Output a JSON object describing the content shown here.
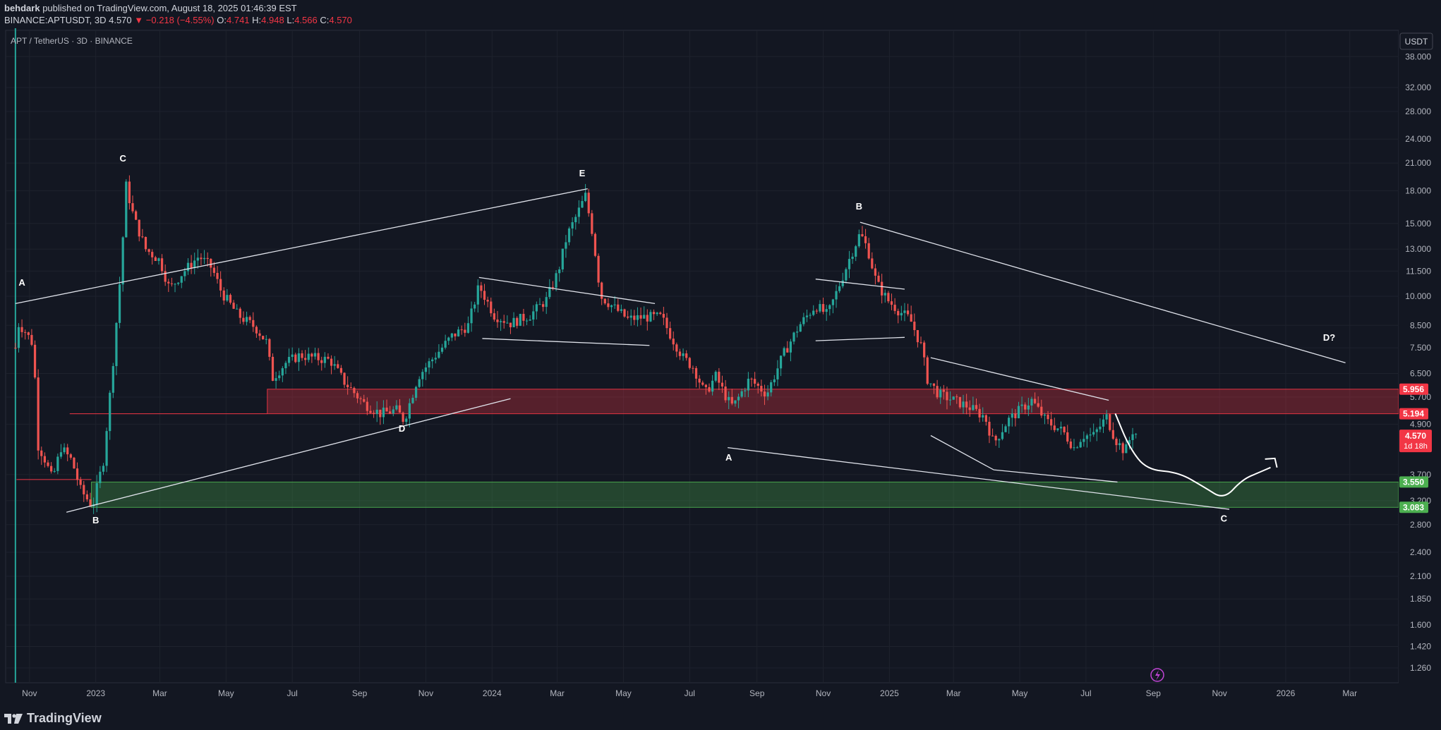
{
  "header": {
    "author": "behdark",
    "published_text": "published on TradingView.com, August 18, 2025 01:46:39 EST",
    "symbol": "BINANCE:APTUSDT, 3D",
    "last": "4.570",
    "change": "−0.218 (−4.55%)",
    "o_label": "O:",
    "o": "4.741",
    "h_label": "H:",
    "h": "4.948",
    "l_label": "L:",
    "l": "4.566",
    "c_label": "C:",
    "c": "4.570"
  },
  "pane": {
    "symbol_title": "APT / TetherUS · 3D · BINANCE",
    "currency_button": "USDT",
    "price_tag": "4.570",
    "countdown": "1d 18h"
  },
  "footer": {
    "brand": "TradingView"
  },
  "colors": {
    "background": "#131722",
    "up": "#26a69a",
    "down": "#ef5350",
    "resistance_zone": "#f23645",
    "support_zone": "#4caf50",
    "annotation": "#ffffff"
  },
  "chart_data": {
    "type": "candlestick",
    "symbol": "APT / TetherUS",
    "interval": "3D",
    "y_scale": "log",
    "y_ticks": [
      "38.000",
      "32.000",
      "28.000",
      "24.000",
      "21.000",
      "18.000",
      "15.000",
      "13.000",
      "11.500",
      "10.000",
      "8.500",
      "7.500",
      "6.500",
      "5.700",
      "4.900",
      "3.700",
      "3.200",
      "2.800",
      "2.400",
      "2.100",
      "1.850",
      "1.600",
      "1.420",
      "1.260"
    ],
    "y_tick_values": [
      38,
      32,
      28,
      24,
      21,
      18,
      15,
      13,
      11.5,
      10,
      8.5,
      7.5,
      6.5,
      5.7,
      4.9,
      3.7,
      3.2,
      2.8,
      2.4,
      2.1,
      1.85,
      1.6,
      1.42,
      1.26
    ],
    "x_ticks": [
      {
        "label": "Nov",
        "date": "2022-11-01"
      },
      {
        "label": "2023",
        "date": "2023-01-01"
      },
      {
        "label": "Mar",
        "date": "2023-03-01"
      },
      {
        "label": "May",
        "date": "2023-05-01"
      },
      {
        "label": "Jul",
        "date": "2023-07-01"
      },
      {
        "label": "Sep",
        "date": "2023-09-01"
      },
      {
        "label": "Nov",
        "date": "2023-11-01"
      },
      {
        "label": "2024",
        "date": "2024-01-01"
      },
      {
        "label": "Mar",
        "date": "2024-03-01"
      },
      {
        "label": "May",
        "date": "2024-05-01"
      },
      {
        "label": "Jul",
        "date": "2024-07-01"
      },
      {
        "label": "Sep",
        "date": "2024-09-01"
      },
      {
        "label": "Nov",
        "date": "2024-11-01"
      },
      {
        "label": "2025",
        "date": "2025-01-01"
      },
      {
        "label": "Mar",
        "date": "2025-03-01"
      },
      {
        "label": "May",
        "date": "2025-05-01"
      },
      {
        "label": "Jul",
        "date": "2025-07-01"
      },
      {
        "label": "Sep",
        "date": "2025-09-01"
      },
      {
        "label": "Nov",
        "date": "2025-11-01"
      },
      {
        "label": "2026",
        "date": "2026-01-01"
      },
      {
        "label": "Mar",
        "date": "2026-03-01"
      }
    ],
    "x_range": [
      "2022-10-10",
      "2026-04-15"
    ],
    "y_range": [
      1.16,
      44
    ],
    "close_path": [
      [
        "2022-10-19",
        7.5
      ],
      [
        "2022-10-21",
        8.6
      ],
      [
        "2022-10-27",
        8.3
      ],
      [
        "2022-11-05",
        7.6
      ],
      [
        "2022-11-08",
        4.4
      ],
      [
        "2022-11-14",
        4.1
      ],
      [
        "2022-11-22",
        3.6
      ],
      [
        "2022-11-30",
        4.3
      ],
      [
        "2022-12-10",
        4.0
      ],
      [
        "2022-12-18",
        3.4
      ],
      [
        "2022-12-29",
        3.1
      ],
      [
        "2023-01-08",
        4.0
      ],
      [
        "2023-01-16",
        6.5
      ],
      [
        "2023-01-24",
        11.5
      ],
      [
        "2023-01-29",
        18.5
      ],
      [
        "2023-02-05",
        15.5
      ],
      [
        "2023-02-16",
        13.0
      ],
      [
        "2023-03-01",
        12.2
      ],
      [
        "2023-03-10",
        10.4
      ],
      [
        "2023-03-22",
        11.4
      ],
      [
        "2023-04-06",
        12.5
      ],
      [
        "2023-04-18",
        11.7
      ],
      [
        "2023-04-27",
        10.2
      ],
      [
        "2023-05-12",
        9.0
      ],
      [
        "2023-05-28",
        8.4
      ],
      [
        "2023-06-08",
        7.7
      ],
      [
        "2023-06-12",
        6.3
      ],
      [
        "2023-06-25",
        6.9
      ],
      [
        "2023-07-08",
        7.2
      ],
      [
        "2023-07-20",
        7.1
      ],
      [
        "2023-08-05",
        7.0
      ],
      [
        "2023-08-18",
        6.2
      ],
      [
        "2023-09-05",
        5.5
      ],
      [
        "2023-09-20",
        5.2
      ],
      [
        "2023-10-05",
        5.3
      ],
      [
        "2023-10-12",
        5.0
      ],
      [
        "2023-10-25",
        6.4
      ],
      [
        "2023-11-10",
        7.2
      ],
      [
        "2023-11-25",
        8.0
      ],
      [
        "2023-12-10",
        8.5
      ],
      [
        "2023-12-20",
        10.6
      ],
      [
        "2024-01-03",
        9.0
      ],
      [
        "2024-01-18",
        8.6
      ],
      [
        "2024-02-05",
        9.0
      ],
      [
        "2024-02-20",
        9.8
      ],
      [
        "2024-03-02",
        11.5
      ],
      [
        "2024-03-10",
        14.0
      ],
      [
        "2024-03-18",
        15.5
      ],
      [
        "2024-03-27",
        17.5
      ],
      [
        "2024-04-03",
        14.0
      ],
      [
        "2024-04-10",
        10.0
      ],
      [
        "2024-04-20",
        9.5
      ],
      [
        "2024-05-05",
        8.8
      ],
      [
        "2024-05-20",
        8.9
      ],
      [
        "2024-06-05",
        8.9
      ],
      [
        "2024-06-15",
        7.9
      ],
      [
        "2024-06-25",
        7.1
      ],
      [
        "2024-07-05",
        6.7
      ],
      [
        "2024-07-15",
        5.8
      ],
      [
        "2024-07-25",
        6.4
      ],
      [
        "2024-08-05",
        5.6
      ],
      [
        "2024-08-10",
        5.4
      ],
      [
        "2024-08-25",
        6.3
      ],
      [
        "2024-09-10",
        5.8
      ],
      [
        "2024-09-25",
        7.2
      ],
      [
        "2024-10-10",
        8.5
      ],
      [
        "2024-10-25",
        9.5
      ],
      [
        "2024-11-05",
        9.0
      ],
      [
        "2024-11-15",
        10.5
      ],
      [
        "2024-11-25",
        12.3
      ],
      [
        "2024-12-05",
        14.2
      ],
      [
        "2024-12-12",
        13.0
      ],
      [
        "2024-12-20",
        10.8
      ],
      [
        "2024-12-30",
        9.8
      ],
      [
        "2025-01-10",
        9.2
      ],
      [
        "2025-01-20",
        8.8
      ],
      [
        "2025-01-30",
        7.6
      ],
      [
        "2025-02-05",
        6.3
      ],
      [
        "2025-02-15",
        5.8
      ],
      [
        "2025-03-01",
        5.6
      ],
      [
        "2025-03-15",
        5.4
      ],
      [
        "2025-03-30",
        5.1
      ],
      [
        "2025-04-07",
        4.4
      ],
      [
        "2025-04-20",
        5.0
      ],
      [
        "2025-05-01",
        5.3
      ],
      [
        "2025-05-12",
        5.6
      ],
      [
        "2025-05-25",
        5.0
      ],
      [
        "2025-06-10",
        4.7
      ],
      [
        "2025-06-20",
        4.3
      ],
      [
        "2025-06-28",
        4.6
      ],
      [
        "2025-07-08",
        4.6
      ],
      [
        "2025-07-20",
        5.1
      ],
      [
        "2025-07-28",
        4.5
      ],
      [
        "2025-08-06",
        4.2
      ],
      [
        "2025-08-14",
        4.8
      ],
      [
        "2025-08-17",
        4.57
      ]
    ],
    "zones": [
      {
        "name": "resistance",
        "from": 5.194,
        "to": 5.956,
        "start": "2023-06-08",
        "end": "2026-04-15",
        "color": "#f23645"
      },
      {
        "name": "support",
        "from": 3.083,
        "to": 3.55,
        "start": "2022-12-28",
        "end": "2026-04-15",
        "color": "#4caf50"
      }
    ],
    "price_labels": [
      {
        "value": "5.956",
        "color": "#f23645"
      },
      {
        "value": "5.194",
        "color": "#f23645"
      },
      {
        "value": "3.550",
        "color": "#4caf50"
      },
      {
        "value": "3.083",
        "color": "#4caf50"
      }
    ],
    "h_lines": [
      {
        "start": "2022-10-20",
        "end": "2022-12-28",
        "value": 3.6
      },
      {
        "start": "2022-12-08",
        "end": "2023-06-08",
        "value": 5.194
      }
    ],
    "trendlines": [
      {
        "start": [
          "2022-10-19",
          9.6
        ],
        "end": [
          "2024-03-29",
          18.2
        ]
      },
      {
        "start": [
          "2022-12-05",
          3.0
        ],
        "end": [
          "2024-01-18",
          5.65
        ]
      },
      {
        "start": [
          "2023-12-20",
          11.1
        ],
        "end": [
          "2024-05-30",
          9.6
        ]
      },
      {
        "start": [
          "2023-12-23",
          7.9
        ],
        "end": [
          "2024-05-25",
          7.6
        ]
      },
      {
        "start": [
          "2024-08-05",
          4.3
        ],
        "end": [
          "2025-11-10",
          3.05
        ]
      },
      {
        "start": [
          "2024-12-05",
          15.1
        ],
        "end": [
          "2026-02-25",
          6.9
        ]
      },
      {
        "start": [
          "2024-10-25",
          11.0
        ],
        "end": [
          "2025-01-15",
          10.4
        ]
      },
      {
        "start": [
          "2024-10-25",
          7.8
        ],
        "end": [
          "2025-01-15",
          7.95
        ]
      },
      {
        "start": [
          "2025-02-08",
          7.1
        ],
        "end": [
          "2025-07-22",
          5.6
        ]
      },
      {
        "start": [
          "2025-02-08",
          4.6
        ],
        "end": [
          "2025-04-07",
          3.8
        ]
      },
      {
        "start": [
          "2025-04-07",
          3.8
        ],
        "end": [
          "2025-07-30",
          3.55
        ]
      }
    ],
    "projection": [
      [
        "2025-07-28",
        5.2
      ],
      [
        "2025-08-10",
        4.3
      ],
      [
        "2025-08-26",
        3.8
      ],
      [
        "2025-09-24",
        3.75
      ],
      [
        "2025-10-18",
        3.45
      ],
      [
        "2025-11-05",
        3.22
      ],
      [
        "2025-11-22",
        3.6
      ],
      [
        "2025-12-08",
        3.75
      ],
      [
        "2025-12-18",
        3.85
      ]
    ],
    "projection_arrow_tip": [
      "2025-12-22",
      4.05
    ],
    "wave_labels": [
      {
        "text": "A",
        "date": "2022-10-25",
        "value": 10.6
      },
      {
        "text": "B",
        "date": "2023-01-01",
        "value": 2.82
      },
      {
        "text": "C",
        "date": "2023-01-26",
        "value": 21.2
      },
      {
        "text": "D",
        "date": "2023-10-10",
        "value": 4.7
      },
      {
        "text": "E",
        "date": "2024-03-24",
        "value": 19.5
      },
      {
        "text": "A",
        "date": "2024-08-06",
        "value": 4.0
      },
      {
        "text": "B",
        "date": "2024-12-04",
        "value": 16.2
      },
      {
        "text": "C",
        "date": "2025-11-05",
        "value": 2.85
      },
      {
        "text": "D?",
        "date": "2026-02-10",
        "value": 7.8
      }
    ]
  }
}
